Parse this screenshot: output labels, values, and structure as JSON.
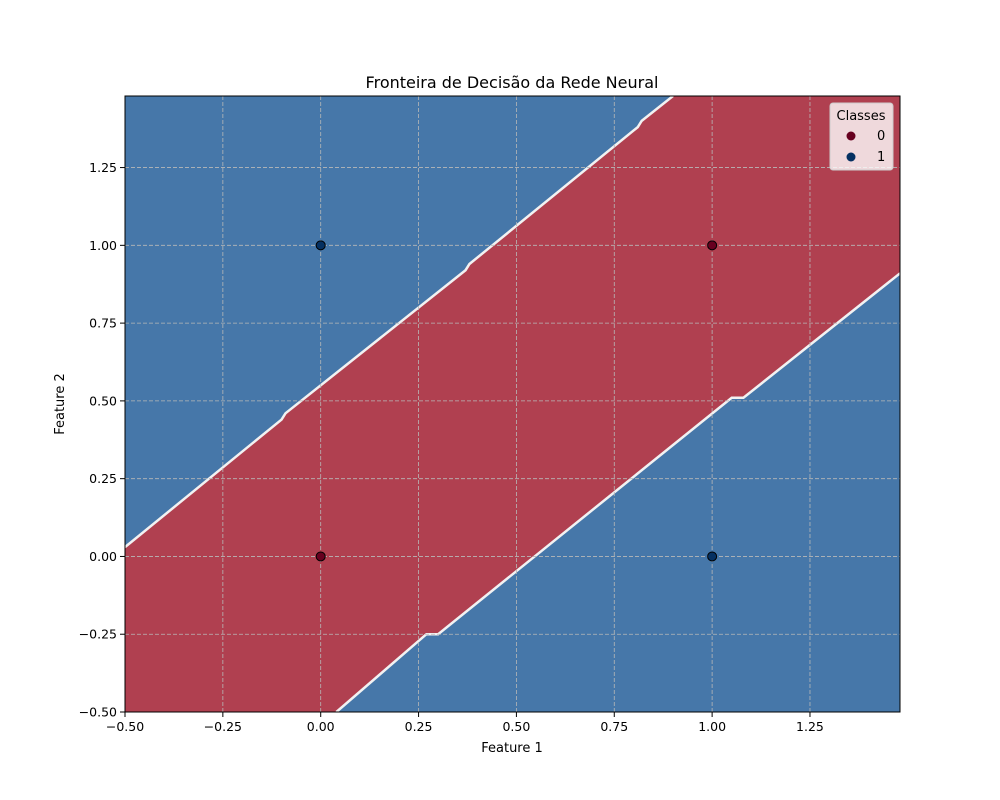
{
  "chart_data": {
    "type": "scatter",
    "title": "Fronteira de Decisão da Rede Neural",
    "xlabel": "Feature 1",
    "ylabel": "Feature 2",
    "xlim": [
      -0.5,
      1.48
    ],
    "ylim": [
      -0.5,
      1.48
    ],
    "x_ticks": [
      -0.5,
      -0.25,
      0.0,
      0.25,
      0.5,
      0.75,
      1.0,
      1.25
    ],
    "x_tick_labels": [
      "−0.50",
      "−0.25",
      "0.00",
      "0.25",
      "0.50",
      "0.75",
      "1.00",
      "1.25"
    ],
    "y_ticks": [
      -0.5,
      -0.25,
      0.0,
      0.25,
      0.5,
      0.75,
      1.0,
      1.25
    ],
    "y_tick_labels": [
      "−0.50",
      "−0.25",
      "0.00",
      "0.25",
      "0.50",
      "0.75",
      "1.00",
      "1.25"
    ],
    "grid": true,
    "legend": {
      "title": "Classes",
      "placement": "top-right",
      "entries": [
        {
          "label": "0",
          "color": "#67001f"
        },
        {
          "label": "1",
          "color": "#053061"
        }
      ]
    },
    "points": [
      {
        "x": 0.0,
        "y": 0.0,
        "class": 0
      },
      {
        "x": 0.0,
        "y": 1.0,
        "class": 1
      },
      {
        "x": 1.0,
        "y": 0.0,
        "class": 1
      },
      {
        "x": 1.0,
        "y": 1.0,
        "class": 0
      }
    ],
    "regions": {
      "class_0_color": "#b04050",
      "class_1_color": "#4677a9",
      "boundary_upper": [
        [
          -0.5,
          0.03
        ],
        [
          -0.1,
          0.44
        ],
        [
          -0.09,
          0.46
        ],
        [
          0.37,
          0.92
        ],
        [
          0.38,
          0.94
        ],
        [
          0.81,
          1.38
        ],
        [
          0.82,
          1.4
        ],
        [
          0.9,
          1.48
        ]
      ],
      "boundary_lower": [
        [
          0.04,
          -0.5
        ],
        [
          0.27,
          -0.25
        ],
        [
          0.3,
          -0.25
        ],
        [
          1.05,
          0.51
        ],
        [
          1.08,
          0.51
        ],
        [
          1.48,
          0.91
        ]
      ]
    }
  }
}
